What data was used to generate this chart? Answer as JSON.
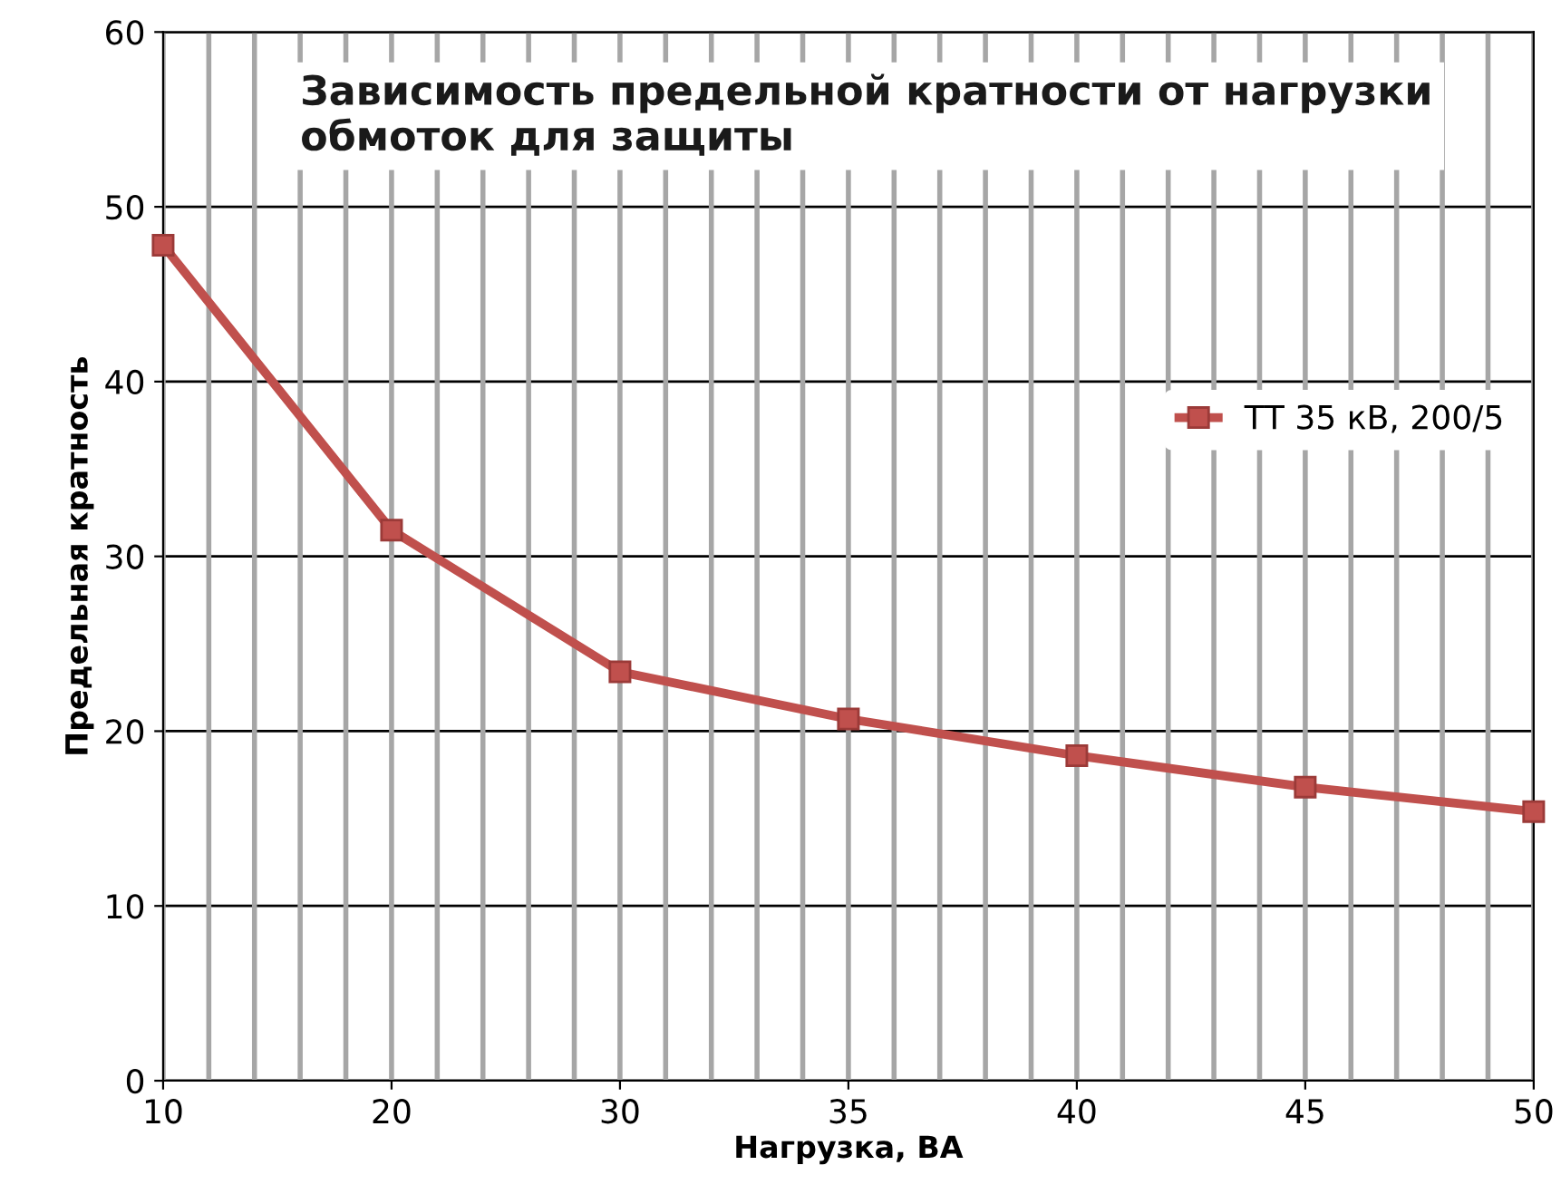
{
  "chart_data": {
    "type": "line",
    "title": "Зависимость предельной кратности от нагрузки\nобмоток для защиты",
    "xlabel": "Нагрузка, ВА",
    "ylabel": "Предельная кратность",
    "categories": [
      "10",
      "20",
      "30",
      "35",
      "40",
      "45",
      "50"
    ],
    "series": [
      {
        "name": "ТТ 35 кВ, 200/5",
        "color": "#c0504d",
        "values": [
          47.8,
          31.5,
          23.4,
          20.7,
          18.6,
          16.8,
          15.4
        ]
      }
    ],
    "ylim": [
      0,
      60
    ],
    "yticks": [
      0,
      10,
      20,
      30,
      40,
      50,
      60
    ],
    "grid": true,
    "legend": "right",
    "marker": "square",
    "line_style": "solid"
  }
}
